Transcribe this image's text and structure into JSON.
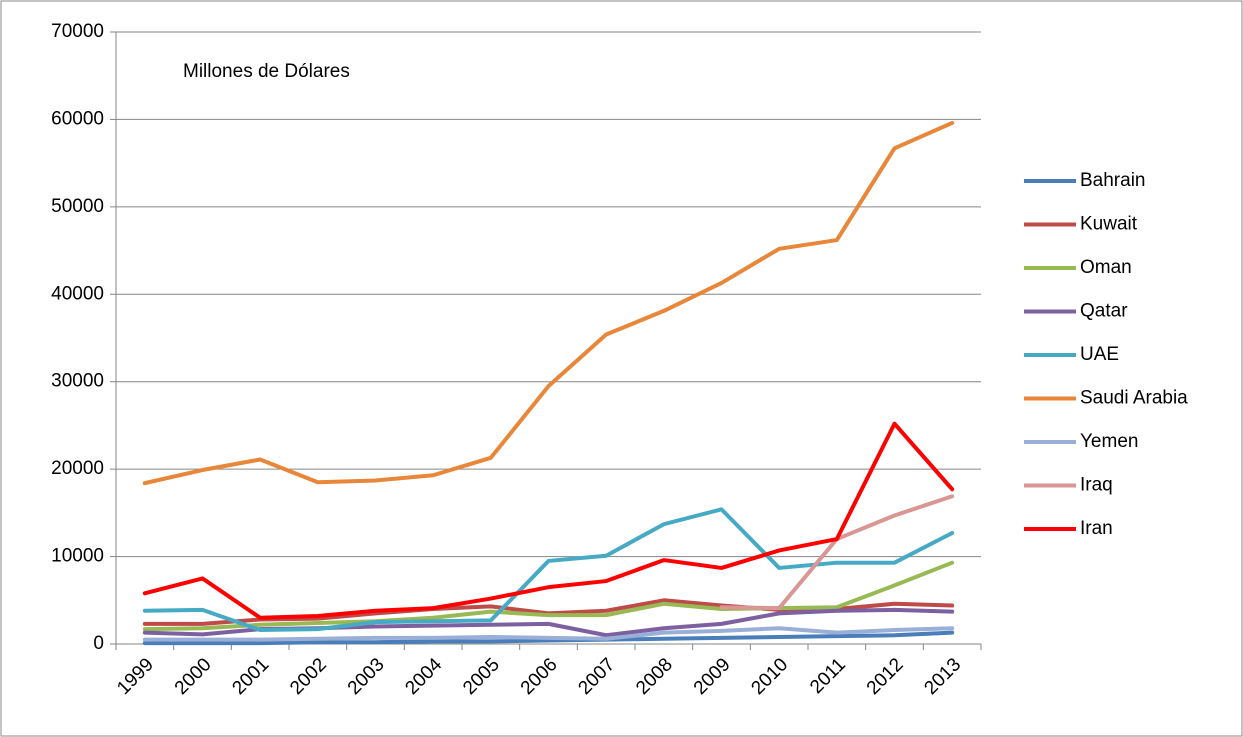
{
  "chart_data": {
    "type": "line",
    "annotation": "Millones de Dólares",
    "categories": [
      "1999",
      "2000",
      "2001",
      "2002",
      "2003",
      "2004",
      "2005",
      "2006",
      "2007",
      "2008",
      "2009",
      "2010",
      "2011",
      "2012",
      "2013"
    ],
    "ylim": [
      0,
      70000
    ],
    "yticks": [
      0,
      10000,
      20000,
      30000,
      40000,
      50000,
      60000,
      70000
    ],
    "grid": true,
    "legend": "right",
    "series": [
      {
        "name": "Bahrain",
        "color": "#4a7ebb",
        "values": [
          100,
          100,
          100,
          200,
          200,
          300,
          300,
          400,
          500,
          600,
          700,
          800,
          900,
          1000,
          1300
        ]
      },
      {
        "name": "Kuwait",
        "color": "#be4b48",
        "values": [
          2300,
          2300,
          2800,
          2900,
          3500,
          4000,
          4300,
          3500,
          3800,
          5000,
          4400,
          3900,
          4000,
          4600,
          4400
        ]
      },
      {
        "name": "Oman",
        "color": "#98b954",
        "values": [
          1700,
          1800,
          2200,
          2400,
          2600,
          3000,
          3700,
          3300,
          3300,
          4600,
          4000,
          4100,
          4200,
          6700,
          9300
        ]
      },
      {
        "name": "Qatar",
        "color": "#7d60a0",
        "values": [
          1300,
          1100,
          1700,
          1800,
          2000,
          2100,
          2200,
          2300,
          1000,
          1800,
          2300,
          3500,
          3800,
          3900,
          3700
        ]
      },
      {
        "name": "UAE",
        "color": "#46aac5",
        "values": [
          3800,
          3900,
          1600,
          1700,
          2500,
          2600,
          2700,
          9500,
          10100,
          13700,
          15400,
          8700,
          9300,
          9300,
          12700
        ]
      },
      {
        "name": "Saudi Arabia",
        "color": "#e8873a",
        "values": [
          18400,
          19900,
          21100,
          18500,
          18700,
          19300,
          21300,
          29500,
          35400,
          38100,
          41300,
          45200,
          46200,
          56700,
          59600
        ]
      },
      {
        "name": "Yemen",
        "color": "#9aafd7",
        "values": [
          500,
          500,
          500,
          600,
          700,
          700,
          800,
          700,
          600,
          1300,
          1500,
          1800,
          1300,
          1600,
          1800
        ]
      },
      {
        "name": "Iraq",
        "color": "#d99694",
        "values": [
          null,
          null,
          null,
          null,
          null,
          null,
          null,
          null,
          null,
          null,
          4200,
          4100,
          12000,
          14700,
          16900
        ]
      },
      {
        "name": "Iran",
        "color": "#ff0000",
        "values": [
          5800,
          7500,
          3000,
          3200,
          3800,
          4100,
          5200,
          6500,
          7200,
          9600,
          8700,
          10700,
          12000,
          25200,
          17700
        ]
      }
    ]
  }
}
